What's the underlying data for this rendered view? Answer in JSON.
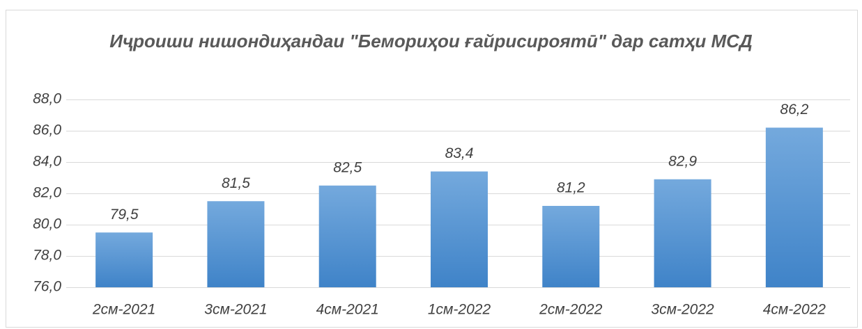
{
  "chart_data": {
    "type": "bar",
    "title": "Иҷроиши нишондиҳандаи \"Бемориҳои ғайрисироятӣ\" дар сатҳи МСД",
    "categories": [
      "2см-2021",
      "3см-2021",
      "4см-2021",
      "1см-2022",
      "2см-2022",
      "3см-2022",
      "4см-2022"
    ],
    "values": [
      79.5,
      81.5,
      82.5,
      83.4,
      81.2,
      82.9,
      86.2
    ],
    "value_labels": [
      "79,5",
      "81,5",
      "82,5",
      "83,4",
      "81,2",
      "82,9",
      "86,2"
    ],
    "color": "#5b9bd5",
    "ylim": [
      76,
      88
    ],
    "yticks": [
      {
        "value": 76,
        "label": "76,0"
      },
      {
        "value": 78,
        "label": "78,0"
      },
      {
        "value": 80,
        "label": "80,0"
      },
      {
        "value": 82,
        "label": "82,0"
      },
      {
        "value": 84,
        "label": "84,0"
      },
      {
        "value": 86,
        "label": "86,0"
      },
      {
        "value": 88,
        "label": "88,0"
      }
    ],
    "grid": true
  }
}
